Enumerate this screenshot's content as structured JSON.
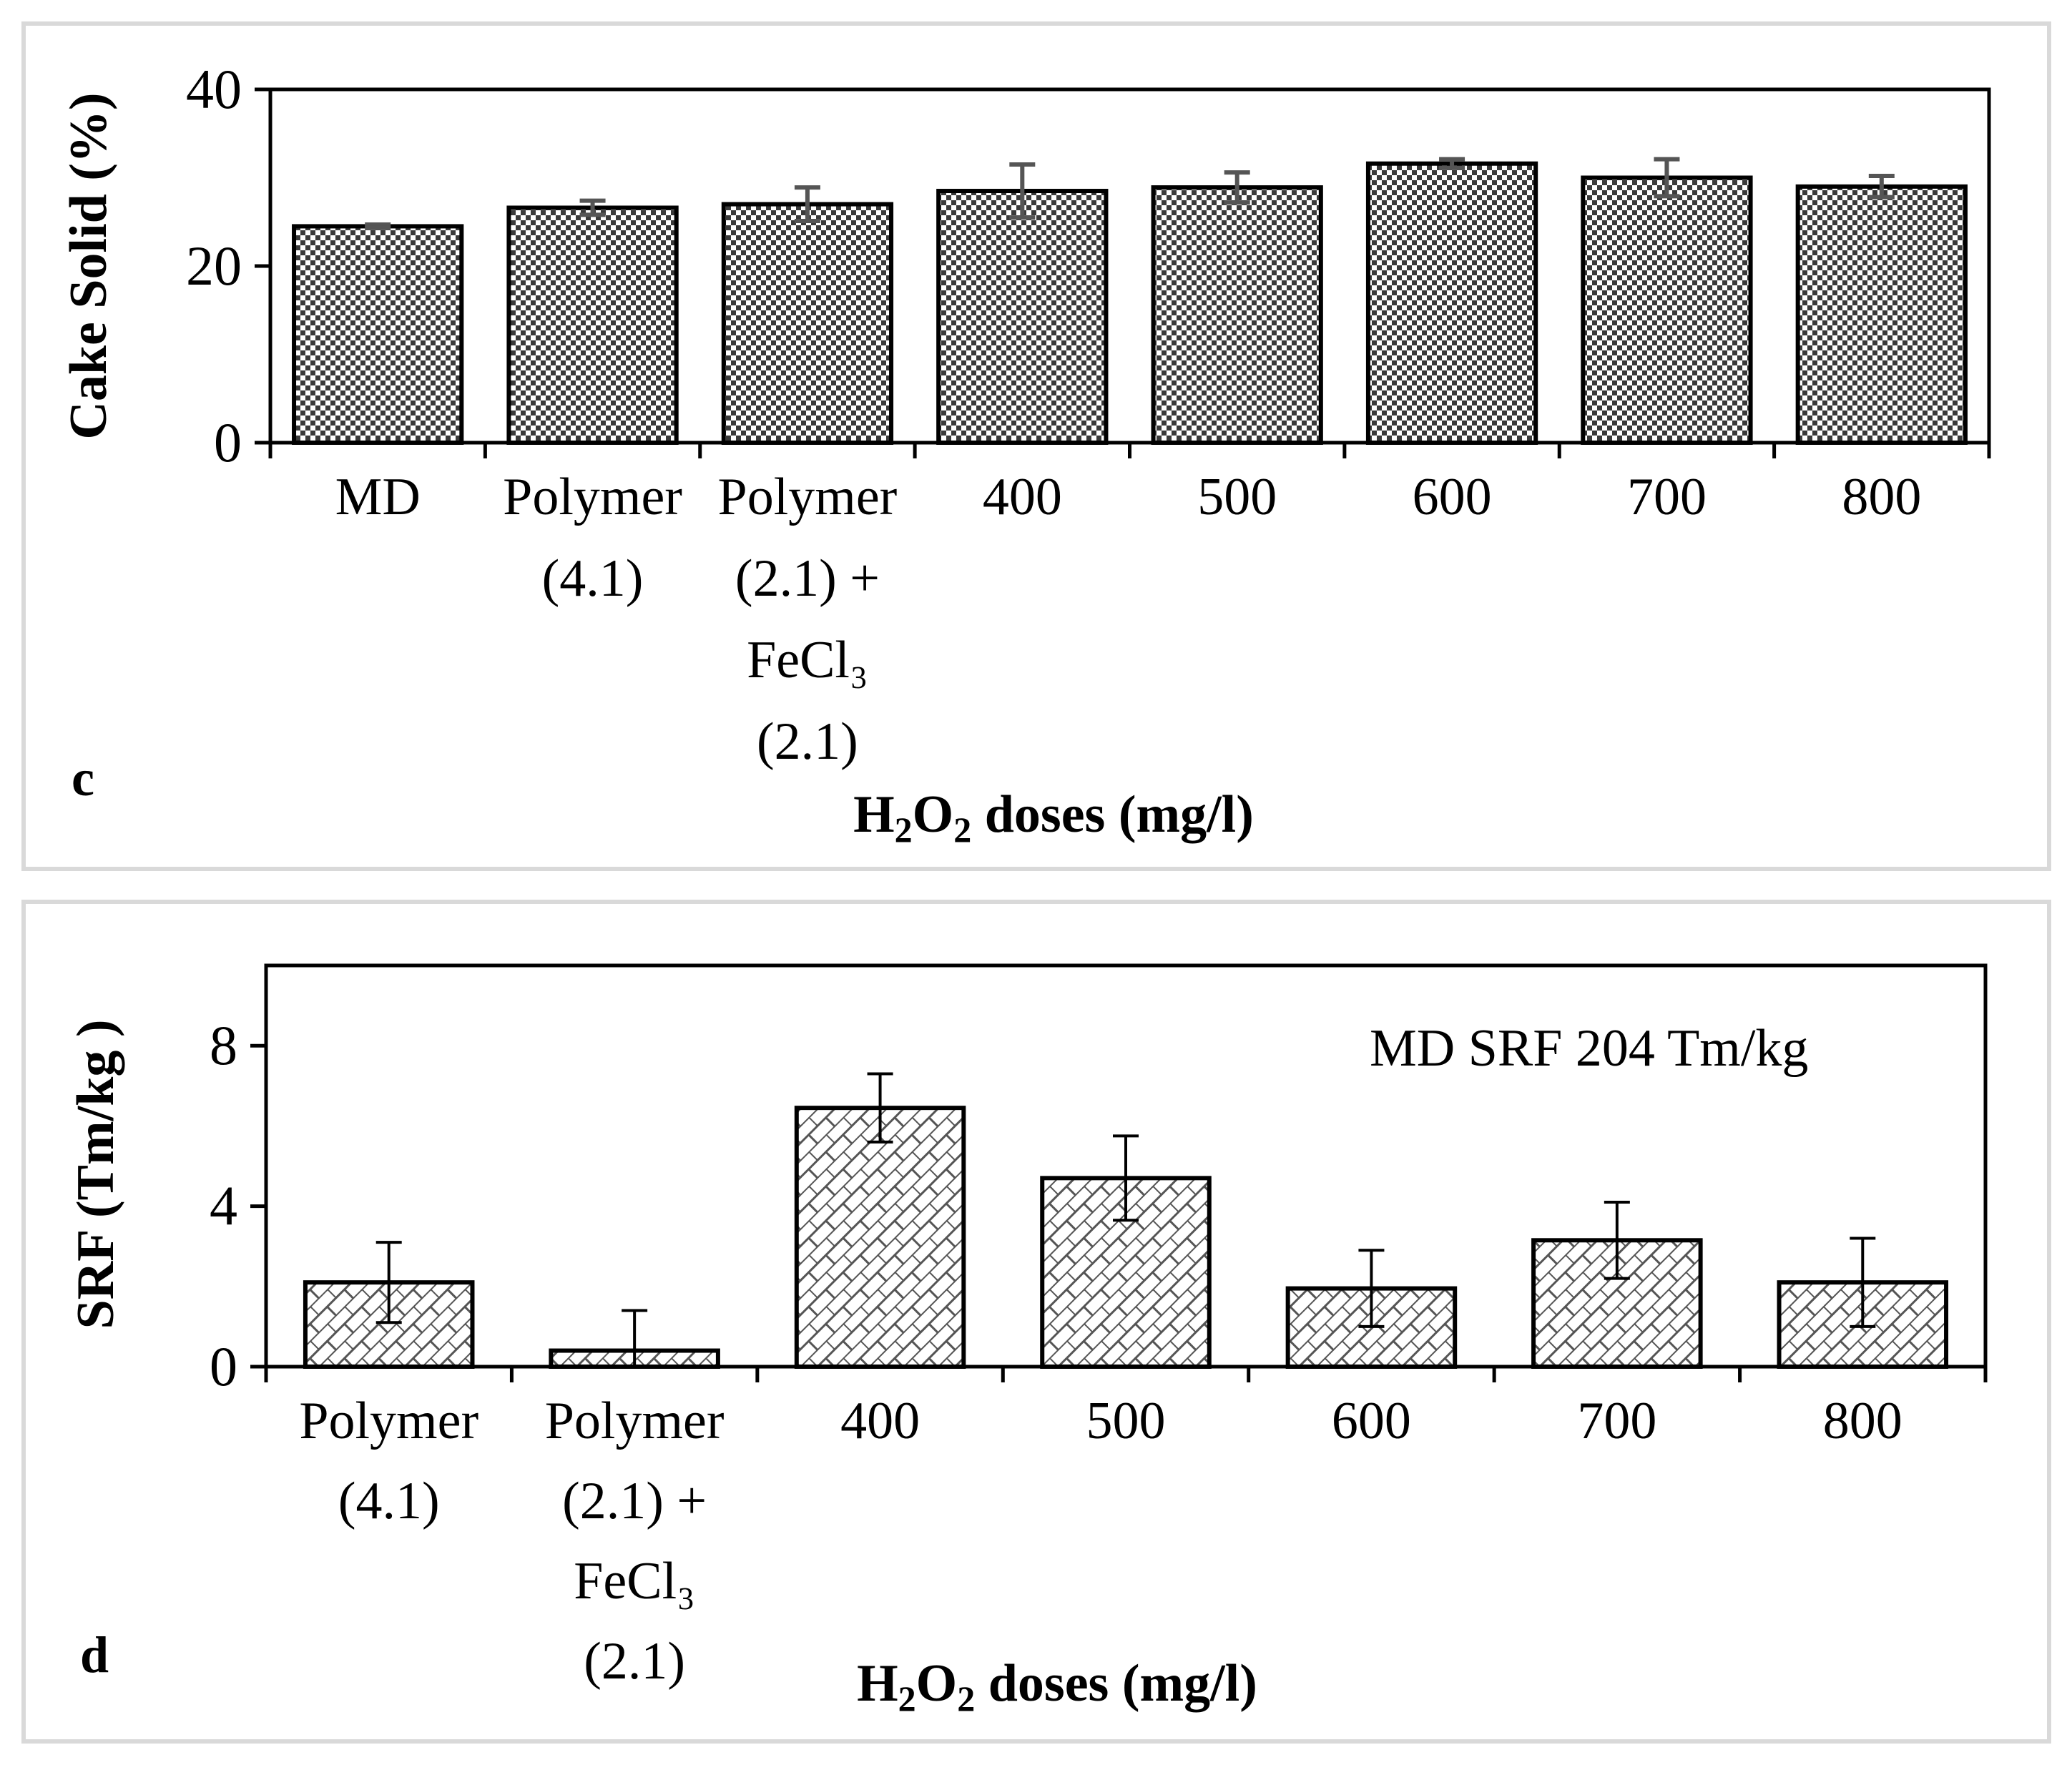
{
  "chart_data": [
    {
      "panel": "c",
      "type": "bar",
      "ylabel": "Cake Solid (%)",
      "xlabel": "H2O2 doses (mg/l)",
      "xlabel_parts": [
        "H",
        "2",
        "O",
        "2",
        " doses (mg/l)"
      ],
      "ylim": [
        0,
        40
      ],
      "yticks": [
        0,
        20,
        40
      ],
      "grid": false,
      "categories": [
        [
          "MD"
        ],
        [
          "Polymer",
          "(4.1)"
        ],
        [
          "Polymer",
          "(2.1) +",
          "FeCl₃",
          "(2.1)"
        ],
        [
          "400"
        ],
        [
          "500"
        ],
        [
          "600"
        ],
        [
          "700"
        ],
        [
          "800"
        ]
      ],
      "values": [
        24.5,
        26.6,
        27.0,
        28.5,
        28.9,
        31.6,
        30.0,
        29.0
      ],
      "errors": [
        0.2,
        0.8,
        1.9,
        3.0,
        1.7,
        0.5,
        2.1,
        1.2
      ],
      "pattern": "checker",
      "error_color": "#555555"
    },
    {
      "panel": "d",
      "type": "bar",
      "ylabel": "SRF (Tm/kg )",
      "xlabel": "H2O2 doses (mg/l)",
      "xlabel_parts": [
        "H",
        "2",
        "O",
        "2",
        " doses (mg/l)"
      ],
      "ylim": [
        0,
        10
      ],
      "yticks": [
        0,
        4,
        8
      ],
      "grid": false,
      "annotation": "MD SRF 204 Tm/kg",
      "categories": [
        [
          "Polymer",
          "(4.1)"
        ],
        [
          "Polymer",
          "(2.1) +",
          "FeCl₃",
          "(2.1)"
        ],
        [
          "400"
        ],
        [
          "500"
        ],
        [
          "600"
        ],
        [
          "700"
        ],
        [
          "800"
        ]
      ],
      "values": [
        2.1,
        0.4,
        6.45,
        4.7,
        1.95,
        3.15,
        2.1
      ],
      "errors": [
        1.0,
        1.0,
        0.85,
        1.05,
        0.95,
        0.95,
        1.1
      ],
      "pattern": "diagonal-brick",
      "error_color": "#000000"
    }
  ],
  "panel_labels": {
    "c": "c",
    "d": "d"
  }
}
